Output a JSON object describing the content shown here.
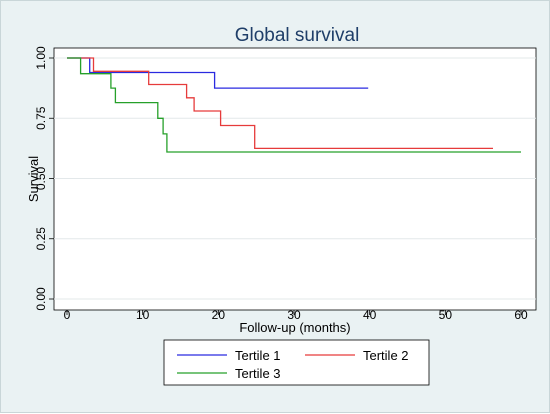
{
  "chart_data": {
    "type": "line",
    "step": true,
    "title": "Global survival",
    "xlabel": "Follow-up (months)",
    "ylabel": "Survival",
    "xlim": [
      0,
      60
    ],
    "ylim": [
      0,
      1
    ],
    "xticks": [
      0,
      10,
      20,
      30,
      40,
      50,
      60
    ],
    "yticks": [
      0,
      0.25,
      0.5,
      0.75,
      1
    ],
    "xtick_labels": [
      "0",
      "10",
      "20",
      "30",
      "40",
      "50",
      "60"
    ],
    "ytick_labels": [
      "0.00",
      "0.25",
      "0.50",
      "0.75",
      "1.00"
    ],
    "grid": "horizontal",
    "legend_position": "bottom",
    "series": [
      {
        "name": "Tertile 1",
        "color": "#2a2ae0",
        "points": [
          [
            0,
            1.0
          ],
          [
            3.0,
            1.0
          ],
          [
            3.0,
            0.94
          ],
          [
            19.5,
            0.94
          ],
          [
            19.5,
            0.875
          ],
          [
            39.8,
            0.875
          ]
        ]
      },
      {
        "name": "Tertile 2",
        "color": "#e63b3b",
        "points": [
          [
            0,
            1.0
          ],
          [
            3.5,
            1.0
          ],
          [
            3.5,
            0.945
          ],
          [
            10.8,
            0.945
          ],
          [
            10.8,
            0.89
          ],
          [
            15.8,
            0.89
          ],
          [
            15.8,
            0.835
          ],
          [
            16.8,
            0.835
          ],
          [
            16.8,
            0.78
          ],
          [
            20.3,
            0.78
          ],
          [
            20.3,
            0.72
          ],
          [
            24.8,
            0.72
          ],
          [
            24.8,
            0.625
          ],
          [
            56.3,
            0.625
          ]
        ]
      },
      {
        "name": "Tertile 3",
        "color": "#26a02a",
        "points": [
          [
            0,
            1.0
          ],
          [
            1.8,
            1.0
          ],
          [
            1.8,
            0.935
          ],
          [
            5.8,
            0.935
          ],
          [
            5.8,
            0.875
          ],
          [
            6.4,
            0.875
          ],
          [
            6.4,
            0.815
          ],
          [
            12.0,
            0.815
          ],
          [
            12.0,
            0.75
          ],
          [
            12.7,
            0.75
          ],
          [
            12.7,
            0.685
          ],
          [
            13.2,
            0.685
          ],
          [
            13.2,
            0.61
          ],
          [
            60.0,
            0.61
          ]
        ]
      }
    ]
  }
}
